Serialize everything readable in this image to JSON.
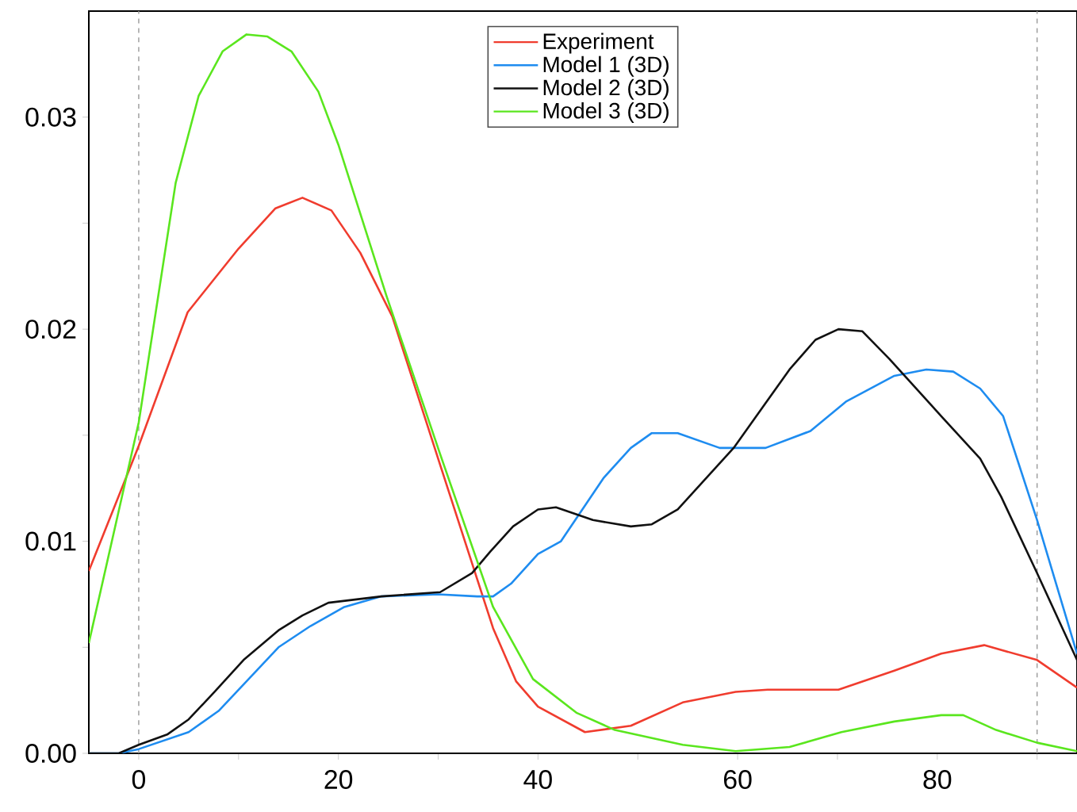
{
  "chart_data": {
    "type": "line",
    "xlim": [
      -5,
      94
    ],
    "ylim": [
      0,
      0.035
    ],
    "xticks": [
      0,
      {
        "value": 10,
        "label": null
      },
      20,
      {
        "value": 30,
        "label": null
      },
      40,
      {
        "value": 50,
        "label": null
      },
      60,
      {
        "value": 70,
        "label": null
      },
      80,
      {
        "value": 90,
        "label": null
      }
    ],
    "yticks": [
      {
        "value": 0,
        "label": "0.00"
      },
      {
        "value": 0.005,
        "label": null
      },
      0.01,
      {
        "value": 0.015,
        "label": null
      },
      0.02,
      {
        "value": 0.025,
        "label": null
      },
      0.03
    ],
    "legend": "top",
    "grid": false,
    "line_style": "solid",
    "marker": "none",
    "ref_lines": [
      {
        "axis": "x",
        "value": 0,
        "color": "#999999",
        "line_style": "dashed"
      },
      {
        "axis": "x",
        "value": 90,
        "color": "#999999",
        "line_style": "dashed"
      }
    ],
    "series": [
      {
        "name": "Experiment",
        "color": "#f03c2e",
        "x": [
          -5,
          0,
          4.9,
          10,
          13.7,
          16.4,
          19.3,
          22.2,
          25.4,
          30.2,
          35.5,
          37.8,
          40,
          44.7,
          49.3,
          54.5,
          59.8,
          63,
          70.1,
          75.7,
          80.4,
          84.7,
          90,
          94
        ],
        "values": [
          0.0086,
          0.0145,
          0.0208,
          0.0238,
          0.0257,
          0.0262,
          0.0256,
          0.0236,
          0.0206,
          0.0136,
          0.0059,
          0.0034,
          0.0022,
          0.001,
          0.0013,
          0.0024,
          0.0029,
          0.003,
          0.003,
          0.0039,
          0.0047,
          0.0051,
          0.0044,
          0.0031
        ]
      },
      {
        "name": "Model 1 (3D)",
        "color": "#1e8cf0",
        "x": [
          -5,
          -2,
          0,
          5,
          8,
          11,
          14,
          17.2,
          20.6,
          24.3,
          30,
          33.9,
          35.5,
          37.3,
          40,
          42.3,
          46.6,
          49.3,
          51.4,
          54,
          58.2,
          62.8,
          67.3,
          70.9,
          75.7,
          78.9,
          81.6,
          84.3,
          86.6,
          90,
          94
        ],
        "values": [
          0,
          0,
          0.0002,
          0.001,
          0.002,
          0.0035,
          0.005,
          0.006,
          0.0069,
          0.0074,
          0.0075,
          0.0074,
          0.0074,
          0.008,
          0.0094,
          0.01,
          0.013,
          0.0144,
          0.0151,
          0.0151,
          0.0144,
          0.0144,
          0.0152,
          0.0166,
          0.0178,
          0.0181,
          0.018,
          0.0172,
          0.0159,
          0.011,
          0.0047
        ]
      },
      {
        "name": "Model 2 (3D)",
        "color": "#111111",
        "x": [
          -5,
          -2,
          0,
          2.9,
          5,
          7.6,
          10.5,
          14,
          16.4,
          19,
          24.3,
          30.2,
          33.4,
          35.2,
          37.5,
          40,
          41.8,
          45.5,
          49.3,
          51.4,
          54,
          59.6,
          65.2,
          67.8,
          70.1,
          72.5,
          75.2,
          80.4,
          84.3,
          86.4,
          90,
          94
        ],
        "values": [
          0,
          0,
          0.0004,
          0.0009,
          0.0016,
          0.0029,
          0.0044,
          0.0058,
          0.0065,
          0.0071,
          0.0074,
          0.0076,
          0.0085,
          0.0095,
          0.0107,
          0.0115,
          0.0116,
          0.011,
          0.0107,
          0.0108,
          0.0115,
          0.0144,
          0.0181,
          0.0195,
          0.02,
          0.0199,
          0.0186,
          0.0159,
          0.0139,
          0.0121,
          0.0085,
          0.0044
        ]
      },
      {
        "name": "Model 3 (3D)",
        "color": "#5ae61e",
        "x": [
          -5,
          0,
          3.7,
          6,
          8.4,
          10.8,
          12.9,
          15.3,
          18,
          20,
          24.8,
          30.2,
          35.5,
          39.5,
          43.9,
          47.7,
          54.5,
          59.8,
          65.2,
          70.4,
          75.7,
          80.4,
          82.6,
          85.9,
          90,
          94
        ],
        "values": [
          0.0052,
          0.0156,
          0.0269,
          0.031,
          0.0331,
          0.0339,
          0.0338,
          0.0331,
          0.0312,
          0.0287,
          0.0216,
          0.0141,
          0.0069,
          0.0035,
          0.0019,
          0.0011,
          0.0004,
          0.0001,
          0.0003,
          0.001,
          0.0015,
          0.0018,
          0.0018,
          0.0011,
          0.0005,
          0.0001
        ]
      }
    ]
  }
}
